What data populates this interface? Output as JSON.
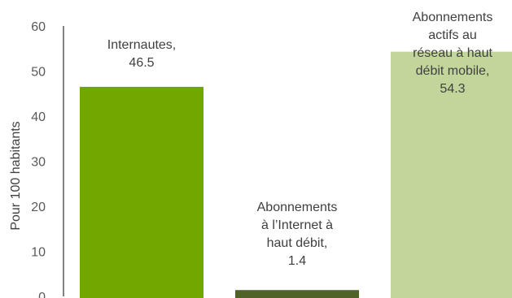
{
  "chart_data": {
    "type": "bar",
    "categories": [
      "Internautes",
      "Abonnements à l’Internet à haut débit",
      "Abonnements actifs au réseau à haut débit mobile"
    ],
    "values": [
      46.5,
      1.4,
      54.3
    ],
    "value_labels": [
      "46.5",
      "1.4",
      "54.3"
    ],
    "ylabel": "Pour 100 habitants",
    "ylim": [
      0,
      60
    ],
    "yticks": [
      "0",
      "10",
      "20",
      "30",
      "40",
      "50",
      "60"
    ],
    "colors": [
      "#70a800",
      "#4f6228",
      "#c2d69b"
    ],
    "label_color": "#404040",
    "label_lines": [
      [
        "Internautes,",
        "46.5"
      ],
      [
        "Abonnements",
        "à l’Internet à",
        "haut débit,",
        "1.4"
      ],
      [
        "Abonnements",
        "actifs au",
        "réseau à haut",
        "débit mobile,",
        "54.3"
      ]
    ],
    "grid": false,
    "legend": "none"
  }
}
